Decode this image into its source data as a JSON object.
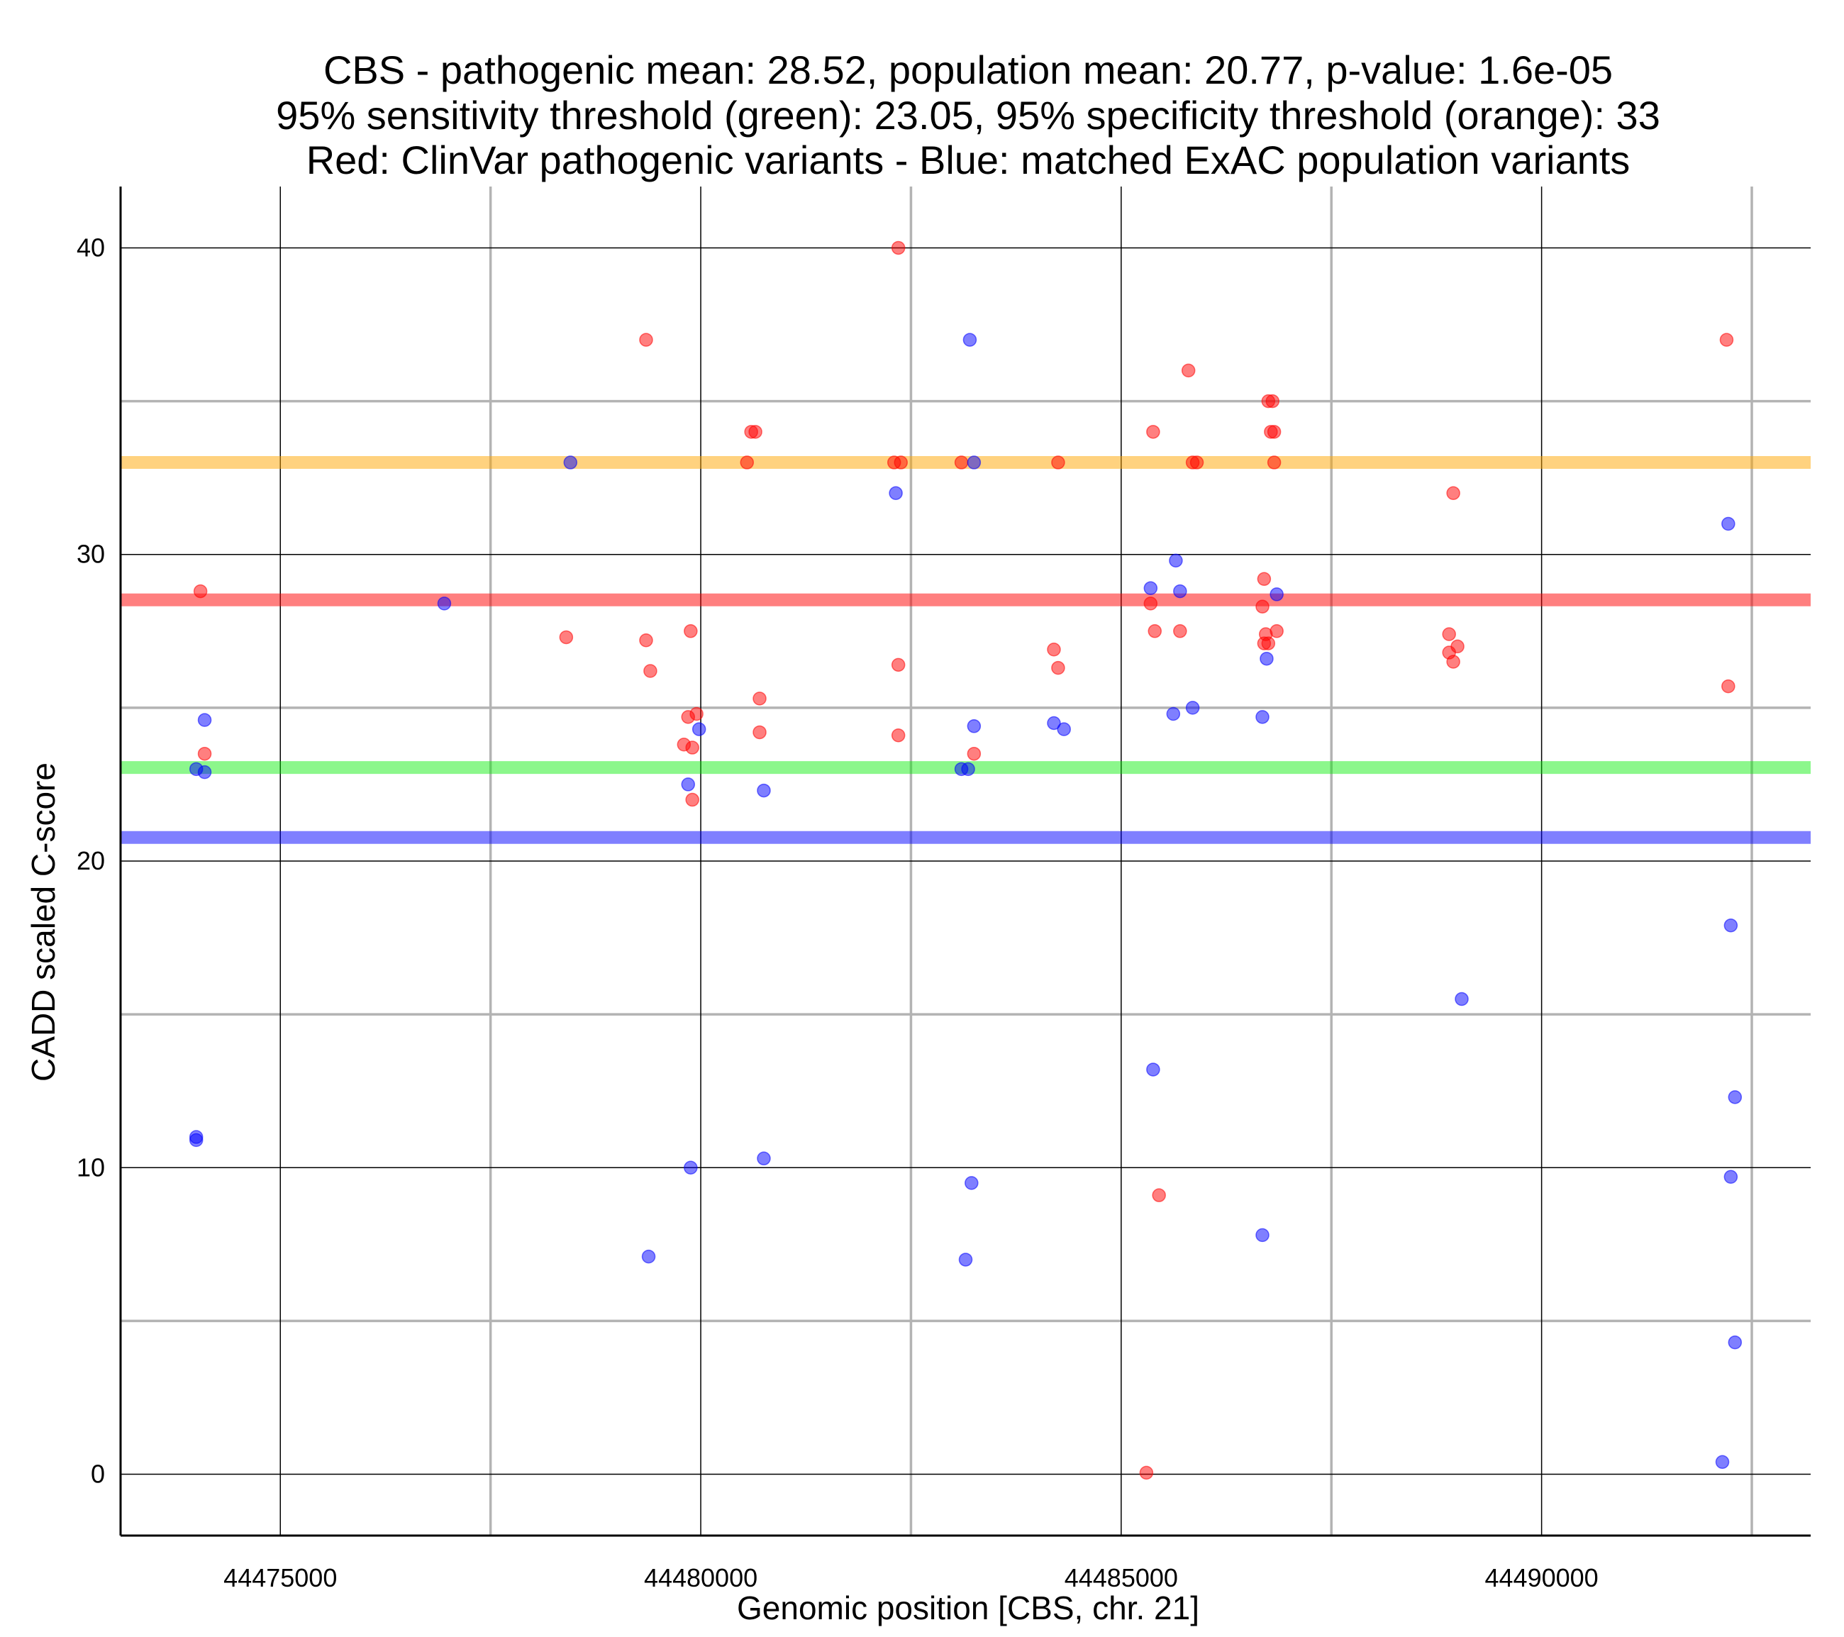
{
  "chart_data": {
    "type": "scatter",
    "title_lines": [
      "CBS - pathogenic mean: 28.52, population mean: 20.77, p-value: 1.6e-05",
      "95% sensitivity threshold (green): 23.05, 95% specificity threshold (orange): 33",
      "Red: ClinVar pathogenic variants - Blue: matched ExAC population variants"
    ],
    "xlabel": "Genomic position [CBS, chr. 21]",
    "ylabel": "CADD scaled C-score",
    "xlim": [
      44473100,
      44493200
    ],
    "ylim": [
      -2,
      42
    ],
    "x_ticks": [
      44475000,
      44480000,
      44485000,
      44490000
    ],
    "x_tick_labels": [
      "44475000",
      "44480000",
      "44485000",
      "44490000"
    ],
    "x_minor_grid": [
      44477500,
      44482500,
      44487500,
      44492500
    ],
    "y_ticks": [
      0,
      10,
      20,
      30,
      40
    ],
    "y_tick_labels": [
      "0",
      "10",
      "20",
      "30",
      "40"
    ],
    "y_minor_grid": [
      5,
      15,
      25,
      35
    ],
    "colors": {
      "pathogenic": "#ff0000",
      "population": "#0000ff",
      "sensitivity": "#00ee00",
      "specificity": "#ffa500",
      "major_grid": "#000000",
      "minor_grid": "#b3b3b3"
    },
    "reference_lines": [
      {
        "name": "specificity-threshold-line",
        "y": 33,
        "color": "#ffa500",
        "alpha": 0.5
      },
      {
        "name": "pathogenic-mean-line",
        "y": 28.52,
        "color": "#ff0000",
        "alpha": 0.5
      },
      {
        "name": "sensitivity-threshold-line",
        "y": 23.05,
        "color": "#00ee00",
        "alpha": 0.45
      },
      {
        "name": "population-mean-line",
        "y": 20.77,
        "color": "#0000ff",
        "alpha": 0.5
      }
    ],
    "series": [
      {
        "name": "ClinVar pathogenic variants",
        "color": "#ff0000",
        "points": [
          [
            44474050,
            28.8
          ],
          [
            44474100,
            23.5
          ],
          [
            44478400,
            27.3
          ],
          [
            44479850,
            24.7
          ],
          [
            44479800,
            23.8
          ],
          [
            44479900,
            23.7
          ],
          [
            44479950,
            24.8
          ],
          [
            44479900,
            22.0
          ],
          [
            44479880,
            27.5
          ],
          [
            44479350,
            37.0
          ],
          [
            44479350,
            27.2
          ],
          [
            44479400,
            26.2
          ],
          [
            44480550,
            33.0
          ],
          [
            44480600,
            34.0
          ],
          [
            44480650,
            34.0
          ],
          [
            44480700,
            25.3
          ],
          [
            44480700,
            24.2
          ],
          [
            44482350,
            40.0
          ],
          [
            44482300,
            33.0
          ],
          [
            44482380,
            33.0
          ],
          [
            44482350,
            26.4
          ],
          [
            44482350,
            24.1
          ],
          [
            44483100,
            33.0
          ],
          [
            44483250,
            23.5
          ],
          [
            44484250,
            33.0
          ],
          [
            44484200,
            26.9
          ],
          [
            44484250,
            26.3
          ],
          [
            44485380,
            34.0
          ],
          [
            44485350,
            28.4
          ],
          [
            44485400,
            27.5
          ],
          [
            44485450,
            9.1
          ],
          [
            44485300,
            0.05
          ],
          [
            44485700,
            27.5
          ],
          [
            44485800,
            36.0
          ],
          [
            44485850,
            33.0
          ],
          [
            44485900,
            33.0
          ],
          [
            44486750,
            35.0
          ],
          [
            44486800,
            35.0
          ],
          [
            44486780,
            34.0
          ],
          [
            44486820,
            34.0
          ],
          [
            44486820,
            33.0
          ],
          [
            44486700,
            29.2
          ],
          [
            44486680,
            28.3
          ],
          [
            44486720,
            27.4
          ],
          [
            44486700,
            27.1
          ],
          [
            44486750,
            27.1
          ],
          [
            44486850,
            27.5
          ],
          [
            44488950,
            32.0
          ],
          [
            44488900,
            27.4
          ],
          [
            44488900,
            26.8
          ],
          [
            44489000,
            27.0
          ],
          [
            44488950,
            26.5
          ],
          [
            44492200,
            37.0
          ],
          [
            44492220,
            25.7
          ]
        ]
      },
      {
        "name": "matched ExAC population variants",
        "color": "#0000ff",
        "points": [
          [
            44474100,
            24.6
          ],
          [
            44474000,
            23.0
          ],
          [
            44474100,
            22.9
          ],
          [
            44474000,
            11.0
          ],
          [
            44474000,
            10.9
          ],
          [
            44476950,
            28.4
          ],
          [
            44478450,
            33.0
          ],
          [
            44479980,
            24.3
          ],
          [
            44479850,
            22.5
          ],
          [
            44479880,
            10.0
          ],
          [
            44479380,
            7.1
          ],
          [
            44480750,
            22.3
          ],
          [
            44480750,
            10.3
          ],
          [
            44482320,
            32.0
          ],
          [
            44483200,
            37.0
          ],
          [
            44483250,
            33.0
          ],
          [
            44483250,
            24.4
          ],
          [
            44483100,
            23.0
          ],
          [
            44483180,
            23.0
          ],
          [
            44483220,
            9.5
          ],
          [
            44483150,
            7.0
          ],
          [
            44484200,
            24.5
          ],
          [
            44484320,
            24.3
          ],
          [
            44485350,
            28.9
          ],
          [
            44485650,
            29.8
          ],
          [
            44485700,
            28.8
          ],
          [
            44485620,
            24.8
          ],
          [
            44485850,
            25.0
          ],
          [
            44485380,
            13.2
          ],
          [
            44486850,
            28.7
          ],
          [
            44486730,
            26.6
          ],
          [
            44486680,
            24.7
          ],
          [
            44486680,
            7.8
          ],
          [
            44489050,
            15.5
          ],
          [
            44492220,
            31.0
          ],
          [
            44492250,
            17.9
          ],
          [
            44492300,
            12.3
          ],
          [
            44492250,
            9.7
          ],
          [
            44492300,
            4.3
          ],
          [
            44492150,
            0.4
          ]
        ]
      }
    ]
  }
}
